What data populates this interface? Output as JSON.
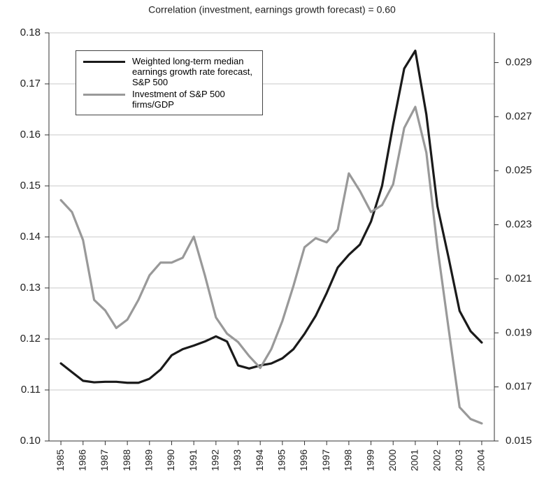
{
  "chart_data": {
    "type": "line",
    "title": "Correlation (investment, earnings growth forecast) = 0.60",
    "x": [
      1985,
      1985.5,
      1986,
      1986.5,
      1987,
      1987.5,
      1988,
      1988.5,
      1989,
      1989.5,
      1990,
      1990.5,
      1991,
      1991.5,
      1992,
      1992.5,
      1993,
      1993.5,
      1994,
      1994.5,
      1995,
      1995.5,
      1996,
      1996.5,
      1997,
      1997.5,
      1998,
      1998.5,
      1999,
      1999.5,
      2000,
      2000.5,
      2001,
      2001.5,
      2002,
      2002.5,
      2003,
      2003.5,
      2004
    ],
    "series": [
      {
        "name": "Weighted long-term median earnings growth rate forecast, S&P 500",
        "color": "#1a1a1a",
        "axis": "y",
        "values": [
          0.1152,
          0.1135,
          0.1118,
          0.1115,
          0.1116,
          0.1116,
          0.1114,
          0.1114,
          0.1122,
          0.114,
          0.1168,
          0.118,
          0.1187,
          0.1195,
          0.1205,
          0.1195,
          0.1148,
          0.1142,
          0.1148,
          0.1152,
          0.1162,
          0.118,
          0.121,
          0.1245,
          0.129,
          0.134,
          0.1365,
          0.1385,
          0.143,
          0.15,
          0.162,
          0.173,
          0.1765,
          0.164,
          0.146,
          0.136,
          0.1255,
          0.1215,
          0.1193
        ]
      },
      {
        "name": "Investment of S&P 500 firms/GDP",
        "color": "#999999",
        "axis": "y2",
        "values": [
          0.02391,
          0.02347,
          0.02243,
          0.02022,
          0.01983,
          0.01918,
          0.01949,
          0.02022,
          0.02113,
          0.0216,
          0.0216,
          0.02178,
          0.02256,
          0.02113,
          0.01957,
          0.01897,
          0.01866,
          0.01814,
          0.0177,
          0.0184,
          0.01944,
          0.02074,
          0.02217,
          0.0225,
          0.02235,
          0.02282,
          0.0249,
          0.02425,
          0.02347,
          0.02373,
          0.0245,
          0.02658,
          0.02736,
          0.02567,
          0.02217,
          0.01918,
          0.01625,
          0.01581,
          0.01565
        ]
      }
    ],
    "xlim": [
      1984.46,
      2004.57
    ],
    "xticks": [
      1985,
      1986,
      1987,
      1988,
      1989,
      1990,
      1991,
      1992,
      1993,
      1994,
      1995,
      1996,
      1997,
      1998,
      1999,
      2000,
      2001,
      2002,
      2003,
      2004
    ],
    "ylim": [
      0.1,
      0.18
    ],
    "yticks": [
      {
        "value": 0.1,
        "label": "0.10"
      },
      0.11,
      0.12,
      0.13,
      0.14,
      0.15,
      0.16,
      0.17,
      0.18
    ],
    "y2lim": [
      0.015,
      0.0301
    ],
    "y2ticks": [
      0.015,
      0.017,
      0.019,
      0.021,
      0.023,
      0.025,
      0.027,
      0.029
    ],
    "grid": true,
    "legend": "upper left"
  }
}
